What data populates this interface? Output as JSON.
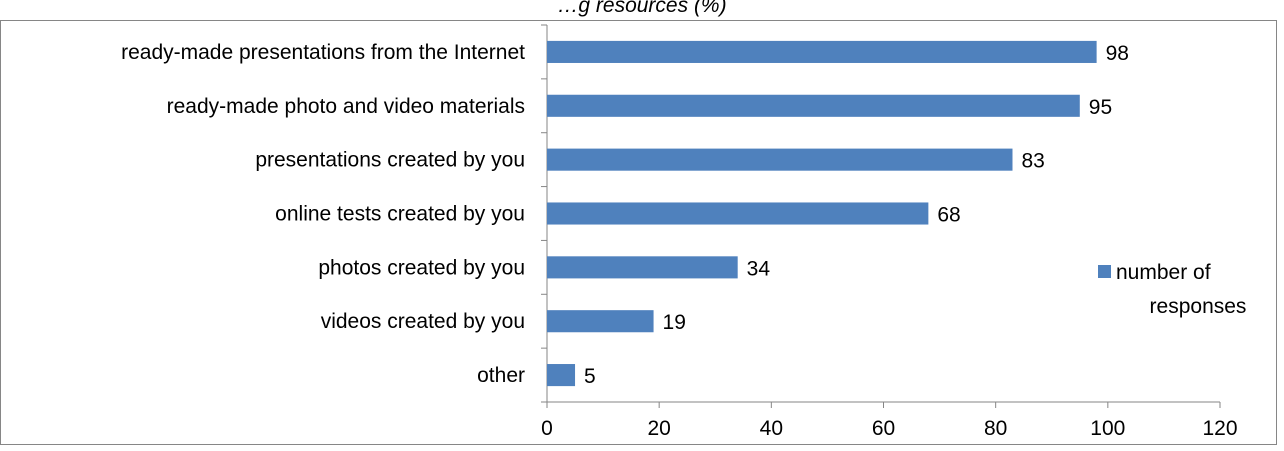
{
  "chart_data": {
    "type": "bar",
    "orientation": "horizontal",
    "title": "…g resources (%)",
    "categories": [
      "ready-made presentations from the Internet",
      "ready-made photo and video materials",
      "presentations created by you",
      "online tests created by you",
      "photos created by you",
      "videos created by you",
      "other"
    ],
    "series": [
      {
        "name": "number of responses",
        "values": [
          98,
          95,
          83,
          68,
          34,
          19,
          5
        ],
        "color": "#4F81BD"
      }
    ],
    "xlim": [
      0,
      120
    ],
    "xticks": [
      0,
      20,
      40,
      60,
      80,
      100,
      120
    ],
    "xlabel": "",
    "ylabel": "",
    "grid": false,
    "legend": {
      "position": "right",
      "lines": [
        "number of",
        "responses"
      ]
    }
  }
}
